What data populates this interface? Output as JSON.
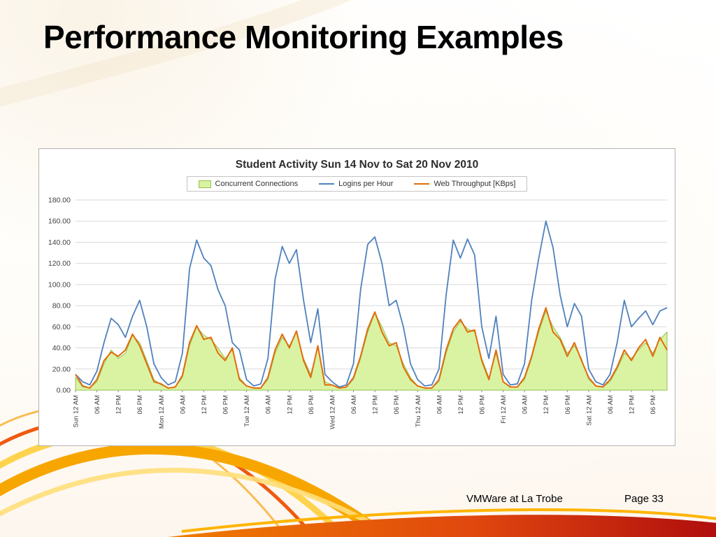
{
  "slide": {
    "title": "Performance Monitoring Examples",
    "footer": {
      "left": "VMWare at La Trobe",
      "right": "Page 33"
    }
  },
  "chart_data": {
    "type": "line",
    "title": "Student Activity Sun 14 Nov to Sat 20 Nov 2010",
    "legend_position": "top",
    "grid": true,
    "ylim": [
      0,
      180
    ],
    "y_tick_step": 20,
    "y_tick_format": "0.00",
    "x_interval_hours": 2,
    "x_tick_every": 3,
    "x_tick_labels": [
      "Sun 12 AM",
      "06 AM",
      "12 PM",
      "06 PM",
      "Mon 12 AM",
      "06 AM",
      "12 PM",
      "06 PM",
      "Tue 12 AM",
      "06 AM",
      "12 PM",
      "06 PM",
      "Wed 12 AM",
      "06 AM",
      "12 PM",
      "06 PM",
      "Thu 12 AM",
      "06 AM",
      "12 PM",
      "06 PM",
      "Fri 12 AM",
      "06 AM",
      "12 PM",
      "06 PM",
      "Sat 12 AM",
      "06 AM",
      "12 PM",
      "06 PM"
    ],
    "series": [
      {
        "name": "Concurrent Connections",
        "type": "area",
        "fill": "#d9f3a3",
        "stroke": "#92c050",
        "values": [
          12,
          3,
          2,
          8,
          25,
          38,
          30,
          35,
          52,
          45,
          28,
          10,
          5,
          2,
          3,
          12,
          42,
          60,
          52,
          48,
          40,
          30,
          38,
          12,
          4,
          2,
          2,
          10,
          35,
          50,
          42,
          55,
          30,
          15,
          40,
          8,
          5,
          2,
          3,
          10,
          30,
          55,
          73,
          60,
          45,
          42,
          25,
          12,
          4,
          2,
          2,
          8,
          35,
          55,
          65,
          58,
          55,
          30,
          12,
          35,
          8,
          3,
          3,
          10,
          30,
          55,
          75,
          60,
          50,
          35,
          42,
          30,
          10,
          4,
          3,
          8,
          20,
          35,
          30,
          38,
          45,
          35,
          48,
          55
        ]
      },
      {
        "name": "Logins per Hour",
        "type": "line",
        "stroke": "#4f81bd",
        "values": [
          15,
          8,
          5,
          18,
          45,
          68,
          62,
          50,
          70,
          85,
          60,
          25,
          12,
          5,
          8,
          35,
          115,
          142,
          125,
          118,
          95,
          80,
          45,
          38,
          10,
          4,
          6,
          30,
          105,
          136,
          120,
          133,
          85,
          45,
          77,
          15,
          8,
          3,
          5,
          25,
          95,
          138,
          145,
          120,
          80,
          85,
          60,
          25,
          10,
          4,
          5,
          20,
          90,
          142,
          125,
          143,
          128,
          60,
          30,
          70,
          15,
          5,
          6,
          25,
          85,
          125,
          160,
          135,
          90,
          60,
          82,
          70,
          20,
          8,
          5,
          15,
          45,
          85,
          60,
          68,
          75,
          62,
          75,
          78
        ]
      },
      {
        "name": "Web Throughput [KBps]",
        "type": "line",
        "stroke": "#e36c0a",
        "values": [
          15,
          4,
          2,
          10,
          28,
          36,
          32,
          38,
          53,
          42,
          25,
          8,
          6,
          2,
          3,
          14,
          45,
          61,
          48,
          50,
          35,
          28,
          40,
          10,
          4,
          2,
          2,
          12,
          38,
          53,
          40,
          56,
          28,
          12,
          42,
          5,
          5,
          2,
          3,
          12,
          32,
          58,
          74,
          55,
          42,
          45,
          22,
          10,
          4,
          2,
          2,
          10,
          38,
          58,
          67,
          55,
          57,
          28,
          10,
          38,
          8,
          3,
          3,
          12,
          32,
          58,
          78,
          55,
          48,
          32,
          45,
          28,
          12,
          4,
          3,
          10,
          22,
          38,
          28,
          40,
          48,
          32,
          50,
          38
        ]
      }
    ],
    "colors": {
      "grid": "#d9d9d9",
      "axis": "#8c8c8c",
      "tick_text": "#404040",
      "title": "#2d2d2d"
    }
  }
}
